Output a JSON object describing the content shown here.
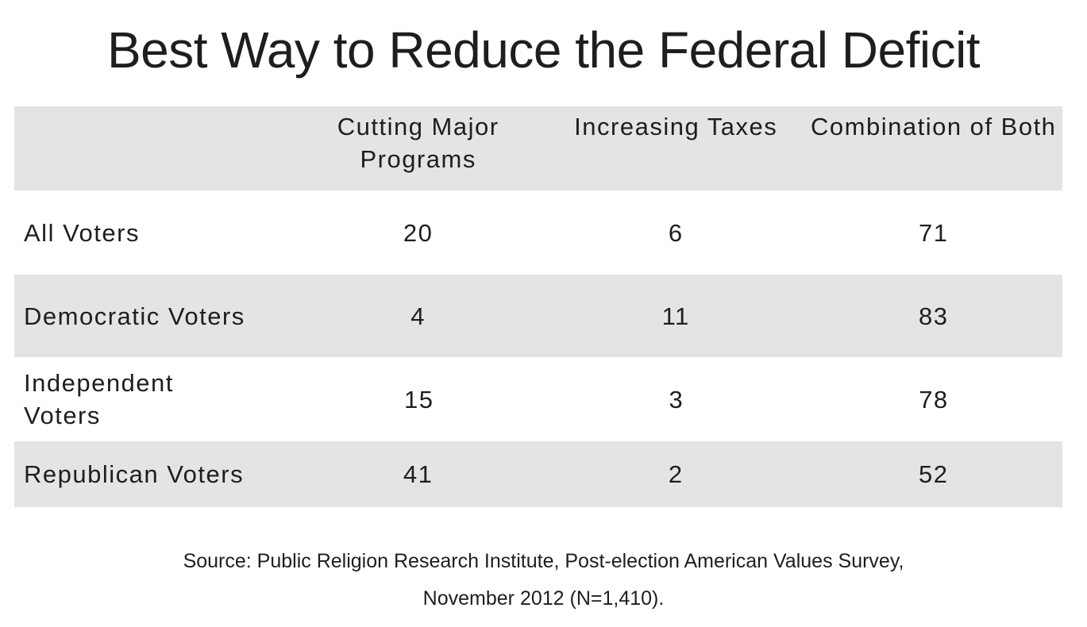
{
  "chart_data": {
    "type": "table",
    "title": "Best Way to Reduce the Federal Deficit",
    "columns": [
      "Cutting Major Programs",
      "Increasing Taxes",
      "Combination of Both"
    ],
    "rows": [
      {
        "label": "All Voters",
        "values": [
          "20",
          "6",
          "71"
        ]
      },
      {
        "label": "Democratic Voters",
        "values": [
          "4",
          "11",
          "83"
        ]
      },
      {
        "label": "Independent Voters",
        "values": [
          "15",
          "3",
          "78"
        ]
      },
      {
        "label": "Republican Voters",
        "values": [
          "41",
          "2",
          "52"
        ]
      }
    ],
    "source_line1": "Source: Public Religion Research Institute, Post-election American Values Survey,",
    "source_line2": "November 2012 (N=1,410)."
  }
}
